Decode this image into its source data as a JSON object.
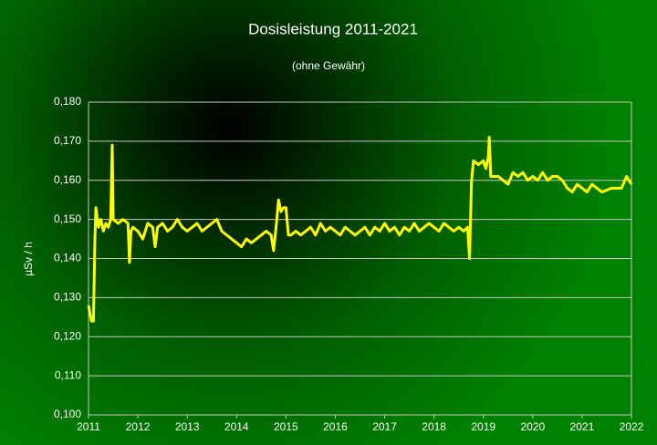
{
  "chart_data": {
    "type": "line",
    "title": "Dosisleistung 2011-2021",
    "subtitle": "(ohne Gewähr)",
    "y_label": "µSv / h",
    "color": "#ffff00",
    "grid": true,
    "xlim": [
      2011,
      2022
    ],
    "xticks": [
      2011,
      2012,
      2013,
      2014,
      2015,
      2016,
      2017,
      2018,
      2019,
      2020,
      2021,
      2022
    ],
    "ylim": [
      0.1,
      0.18
    ],
    "yticks": [
      {
        "value": 0.1,
        "label": "0,100"
      },
      {
        "value": 0.11,
        "label": "0,110"
      },
      {
        "value": 0.12,
        "label": "0,120"
      },
      {
        "value": 0.13,
        "label": "0,130"
      },
      {
        "value": 0.14,
        "label": "0,140"
      },
      {
        "value": 0.15,
        "label": "0,150"
      },
      {
        "value": 0.16,
        "label": "0,160"
      },
      {
        "value": 0.17,
        "label": "0,170"
      },
      {
        "value": 0.18,
        "label": "0,180"
      }
    ],
    "x": [
      2011.0,
      2011.03,
      2011.06,
      2011.1,
      2011.13,
      2011.15,
      2011.2,
      2011.25,
      2011.3,
      2011.35,
      2011.4,
      2011.45,
      2011.48,
      2011.5,
      2011.6,
      2011.7,
      2011.8,
      2011.83,
      2011.86,
      2011.9,
      2012.0,
      2012.1,
      2012.2,
      2012.3,
      2012.35,
      2012.4,
      2012.5,
      2012.6,
      2012.7,
      2012.8,
      2012.9,
      2013.0,
      2013.1,
      2013.2,
      2013.3,
      2013.4,
      2013.5,
      2013.6,
      2013.7,
      2013.8,
      2013.9,
      2014.0,
      2014.1,
      2014.2,
      2014.3,
      2014.4,
      2014.5,
      2014.6,
      2014.7,
      2014.75,
      2014.8,
      2014.85,
      2014.9,
      2014.95,
      2015.0,
      2015.05,
      2015.1,
      2015.2,
      2015.3,
      2015.4,
      2015.5,
      2015.6,
      2015.7,
      2015.8,
      2015.9,
      2016.0,
      2016.1,
      2016.2,
      2016.3,
      2016.4,
      2016.5,
      2016.6,
      2016.7,
      2016.8,
      2016.9,
      2017.0,
      2017.1,
      2017.2,
      2017.3,
      2017.4,
      2017.5,
      2017.6,
      2017.7,
      2017.8,
      2017.9,
      2018.0,
      2018.1,
      2018.2,
      2018.3,
      2018.4,
      2018.5,
      2018.6,
      2018.68,
      2018.72,
      2018.76,
      2018.8,
      2018.9,
      2019.0,
      2019.05,
      2019.1,
      2019.12,
      2019.15,
      2019.2,
      2019.3,
      2019.4,
      2019.5,
      2019.6,
      2019.7,
      2019.8,
      2019.9,
      2020.0,
      2020.1,
      2020.2,
      2020.3,
      2020.4,
      2020.5,
      2020.6,
      2020.7,
      2020.8,
      2020.9,
      2021.0,
      2021.1,
      2021.2,
      2021.3,
      2021.4,
      2021.6,
      2021.8,
      2021.9,
      2022.0
    ],
    "values": [
      0.128,
      0.126,
      0.124,
      0.124,
      0.145,
      0.153,
      0.148,
      0.15,
      0.147,
      0.149,
      0.148,
      0.15,
      0.169,
      0.15,
      0.149,
      0.15,
      0.149,
      0.139,
      0.147,
      0.148,
      0.147,
      0.145,
      0.149,
      0.148,
      0.143,
      0.148,
      0.149,
      0.147,
      0.148,
      0.15,
      0.148,
      0.147,
      0.148,
      0.149,
      0.147,
      0.148,
      0.149,
      0.15,
      0.147,
      0.146,
      0.145,
      0.144,
      0.143,
      0.145,
      0.144,
      0.145,
      0.146,
      0.147,
      0.146,
      0.142,
      0.148,
      0.155,
      0.152,
      0.153,
      0.153,
      0.146,
      0.146,
      0.147,
      0.146,
      0.147,
      0.148,
      0.146,
      0.149,
      0.147,
      0.148,
      0.147,
      0.146,
      0.148,
      0.147,
      0.146,
      0.147,
      0.148,
      0.146,
      0.148,
      0.147,
      0.149,
      0.147,
      0.148,
      0.146,
      0.148,
      0.147,
      0.149,
      0.147,
      0.148,
      0.149,
      0.148,
      0.147,
      0.149,
      0.148,
      0.147,
      0.148,
      0.147,
      0.148,
      0.14,
      0.16,
      0.165,
      0.164,
      0.165,
      0.163,
      0.166,
      0.171,
      0.161,
      0.161,
      0.161,
      0.16,
      0.159,
      0.162,
      0.161,
      0.162,
      0.16,
      0.161,
      0.16,
      0.162,
      0.16,
      0.161,
      0.161,
      0.16,
      0.158,
      0.157,
      0.159,
      0.158,
      0.157,
      0.159,
      0.158,
      0.157,
      0.158,
      0.158,
      0.161,
      0.159
    ]
  }
}
